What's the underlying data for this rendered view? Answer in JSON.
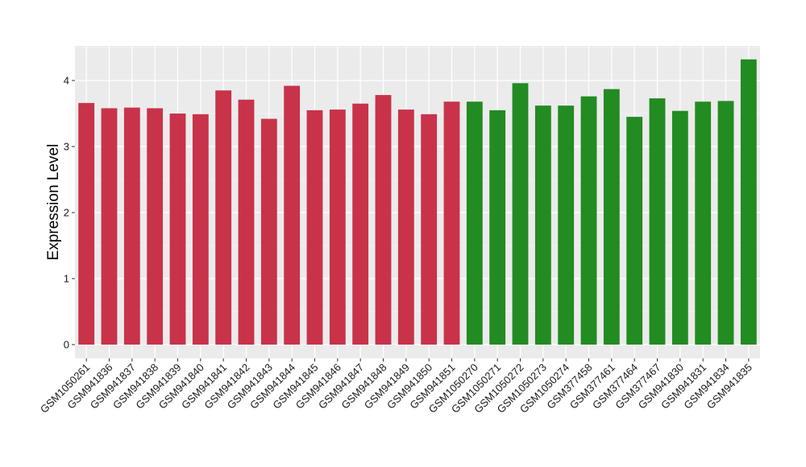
{
  "chart_data": {
    "type": "bar",
    "title": "",
    "xlabel": "",
    "ylabel": "Expression Level",
    "ylim": [
      0,
      4.4
    ],
    "y_ticks": [
      0,
      1,
      2,
      3,
      4
    ],
    "grid": true,
    "background": "#ebebeb",
    "categories": [
      "GSM1050261",
      "GSM941836",
      "GSM941837",
      "GSM941838",
      "GSM941839",
      "GSM941840",
      "GSM941841",
      "GSM941842",
      "GSM941843",
      "GSM941844",
      "GSM941845",
      "GSM941846",
      "GSM941847",
      "GSM941848",
      "GSM941849",
      "GSM941850",
      "GSM941851",
      "GSM1050270",
      "GSM1050271",
      "GSM1050272",
      "GSM1050273",
      "GSM1050274",
      "GSM377458",
      "GSM377461",
      "GSM377464",
      "GSM377467",
      "GSM941830",
      "GSM941831",
      "GSM941834",
      "GSM941835"
    ],
    "values": [
      3.66,
      3.58,
      3.59,
      3.58,
      3.5,
      3.49,
      3.85,
      3.71,
      3.42,
      3.92,
      3.55,
      3.56,
      3.65,
      3.78,
      3.56,
      3.49,
      3.68,
      3.68,
      3.55,
      3.96,
      3.62,
      3.62,
      3.76,
      3.87,
      3.45,
      3.73,
      3.54,
      3.68,
      3.69,
      4.32
    ],
    "colors": [
      "#c8334a",
      "#c8334a",
      "#c8334a",
      "#c8334a",
      "#c8334a",
      "#c8334a",
      "#c8334a",
      "#c8334a",
      "#c8334a",
      "#c8334a",
      "#c8334a",
      "#c8334a",
      "#c8334a",
      "#c8334a",
      "#c8334a",
      "#c8334a",
      "#c8334a",
      "#228b22",
      "#228b22",
      "#228b22",
      "#228b22",
      "#228b22",
      "#228b22",
      "#228b22",
      "#228b22",
      "#228b22",
      "#228b22",
      "#228b22",
      "#228b22",
      "#228b22"
    ]
  }
}
